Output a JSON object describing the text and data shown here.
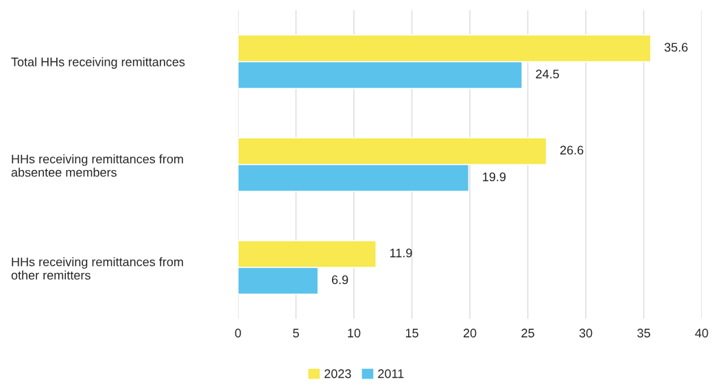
{
  "chart_data": {
    "type": "bar",
    "orientation": "horizontal",
    "categories": [
      "Total HHs receiving remittances",
      "HHs receiving remittances from\nabsentee members",
      "HHs receiving remittances from\nother remitters"
    ],
    "series": [
      {
        "name": "2023",
        "color": "#f7e94f",
        "values": [
          35.6,
          26.6,
          11.9
        ]
      },
      {
        "name": "2011",
        "color": "#5bc2eb",
        "values": [
          24.5,
          19.9,
          6.9
        ]
      }
    ],
    "xlim": [
      0,
      40
    ],
    "xticks": [
      0,
      5,
      10,
      15,
      20,
      25,
      30,
      35,
      40
    ],
    "grid": "x",
    "legend": "bottom",
    "data_labels": true
  }
}
